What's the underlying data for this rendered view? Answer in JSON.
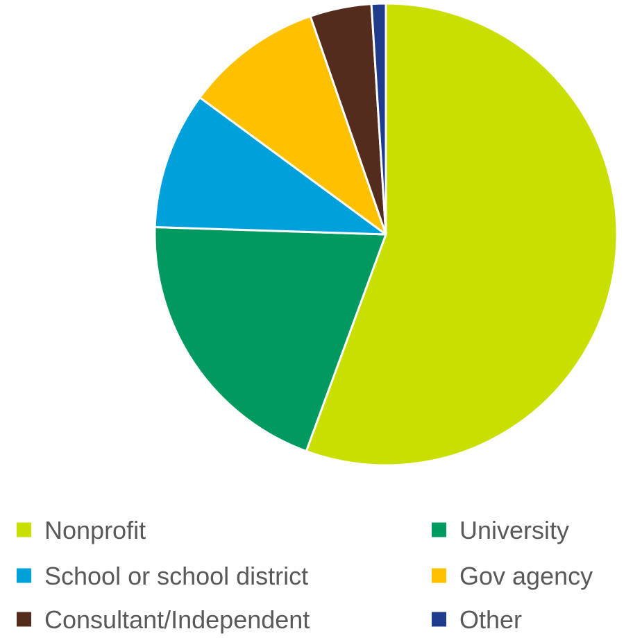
{
  "chart_data": {
    "type": "pie",
    "title": "",
    "slices": [
      {
        "label": "Nonprofit",
        "value": 55.6,
        "color": "#C8DF00"
      },
      {
        "label": "University",
        "value": 19.9,
        "color": "#009A60"
      },
      {
        "label": "School or school district",
        "value": 9.6,
        "color": "#00A0DC"
      },
      {
        "label": "Gov agency",
        "value": 9.6,
        "color": "#FFC000"
      },
      {
        "label": "Consultant/Independent",
        "value": 4.3,
        "color": "#542C1E"
      },
      {
        "label": "Other",
        "value": 1.0,
        "color": "#1F3B8E"
      }
    ],
    "legend": {
      "position": "bottom",
      "columns": 2
    }
  }
}
